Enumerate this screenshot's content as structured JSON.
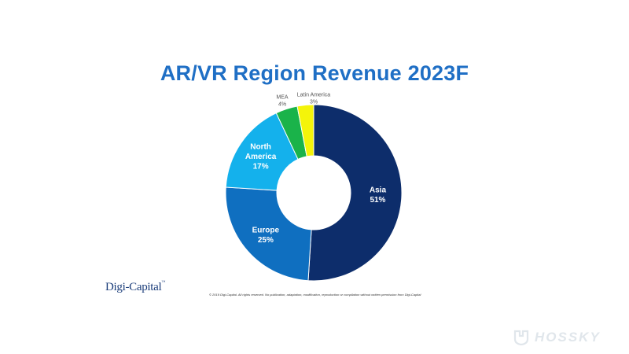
{
  "chart_data": {
    "type": "pie",
    "donut": true,
    "title": "AR/VR Region Revenue 2023F",
    "slices": [
      {
        "label": "Asia",
        "value": 51,
        "value_label": "51%",
        "color": "#0d2d6b",
        "label_position": "inside",
        "label_color": "#ffffff"
      },
      {
        "label": "Europe",
        "value": 25,
        "value_label": "25%",
        "color": "#0f6fc0",
        "label_position": "inside",
        "label_color": "#ffffff"
      },
      {
        "label": "North America",
        "value": 17,
        "value_label": "17%",
        "color": "#14b1ec",
        "label_position": "inside",
        "label_color": "#ffffff"
      },
      {
        "label": "MEA",
        "value": 4,
        "value_label": "4%",
        "color": "#1ab34a",
        "label_position": "outside",
        "label_color": "#555555"
      },
      {
        "label": "Latin America",
        "value": 3,
        "value_label": "3%",
        "color": "#f4f40a",
        "label_position": "outside",
        "label_color": "#555555"
      }
    ]
  },
  "branding": {
    "logo_text": "Digi-Capital",
    "logo_mark": "™",
    "copyright": "© 2019 Digi-Capital. All rights reserved. No publication, adaptation, modification, reproduction or compilation without written permission from Digi-Capital",
    "watermark": "HOSSKY"
  }
}
